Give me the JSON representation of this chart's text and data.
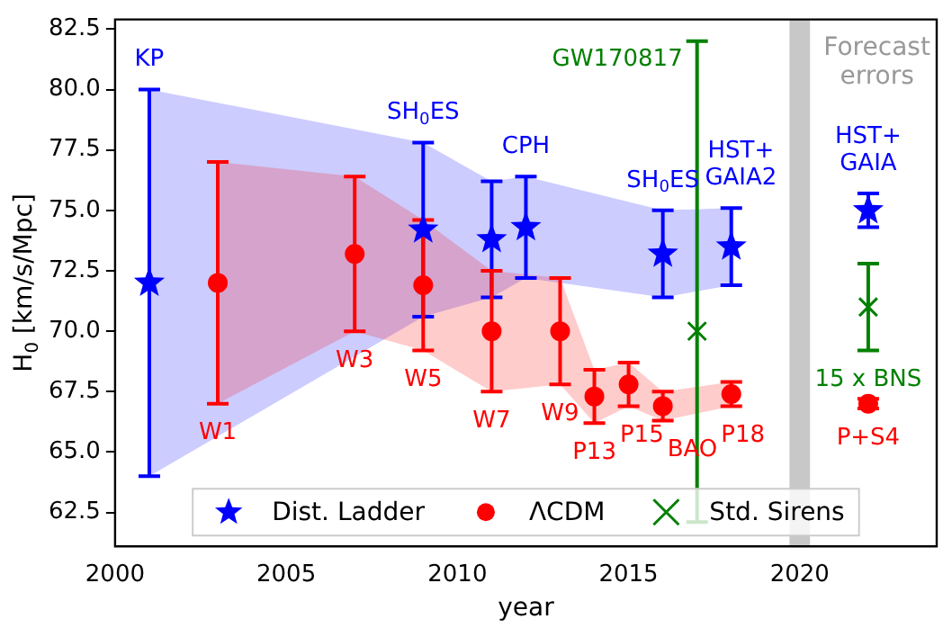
{
  "chart_data": {
    "type": "scatter",
    "xlabel": "year",
    "ylabel": "H$_{0}$ [km/s/Mpc]",
    "xlim": [
      2000,
      2024
    ],
    "xticks": [
      2000,
      2005,
      2010,
      2015,
      2020
    ],
    "ylim": [
      61.1,
      82.9
    ],
    "yticks": [
      62.5,
      {
        "value": 65,
        "label": "65.0"
      },
      67.5,
      {
        "value": 70,
        "label": "70.0"
      },
      72.5,
      {
        "value": 75,
        "label": "75.0"
      },
      77.5,
      {
        "value": 80,
        "label": "80.0"
      },
      82.5
    ],
    "grid": false,
    "legend": "bottom",
    "series": [
      {
        "name": "Dist. Ladder",
        "color": "#0000ff",
        "marker": "star",
        "x": [
          2001,
          2009,
          2011,
          2012,
          2016,
          2018,
          2022
        ],
        "values": [
          72,
          74.2,
          73.8,
          74.3,
          73.2,
          73.5,
          75.0
        ],
        "errors": [
          8,
          3.6,
          2.4,
          2.1,
          1.8,
          1.6,
          0.7
        ],
        "lower": [
          64,
          70.6,
          71.4,
          72.2,
          71.4,
          71.9,
          null
        ],
        "upper": [
          80,
          77.8,
          76.2,
          76.4,
          75.0,
          75.1,
          null
        ]
      },
      {
        "name": "ΛCDM",
        "color": "#ff0000",
        "marker": "circle",
        "x": [
          2003,
          2007,
          2009,
          2011,
          2013,
          2014,
          2015,
          2016,
          2018,
          2022
        ],
        "values": [
          72,
          73.2,
          71.9,
          70.0,
          70.0,
          67.3,
          67.8,
          66.9,
          67.4,
          67.0
        ],
        "errors": [
          5,
          3.2,
          2.7,
          2.5,
          2.2,
          1.1,
          0.9,
          0.6,
          0.5,
          0.2
        ],
        "lower": [
          67,
          70,
          69.2,
          67.5,
          67.8,
          66.2,
          66.9,
          66.3,
          66.9,
          null
        ],
        "upper": [
          77,
          76.4,
          74.6,
          72.5,
          72.2,
          68.4,
          68.7,
          67.5,
          67.9,
          null
        ]
      },
      {
        "name": "Std. Sirens",
        "color": "#008000",
        "marker": "cross",
        "x": [
          2017,
          2022
        ],
        "values": [
          70,
          71.0
        ],
        "errors": [
          [
            62.1,
            82.0
          ],
          1.8
        ]
      }
    ],
    "bands": [
      {
        "axis": "x",
        "from": 2019.7,
        "to": 2020.3,
        "label": "Forecast\nerrors",
        "color": "#c8c8c8"
      }
    ],
    "annotations": [
      {
        "text": "KP",
        "x": 2001,
        "y": 80
      },
      {
        "text": "SH$_{0}$ES",
        "x": 2009,
        "y": 77.8
      },
      {
        "text": "CPH",
        "x": 2012,
        "y": 76.4
      },
      {
        "text": "SH$_{0}$ES",
        "x": 2016,
        "y": 75.0
      },
      {
        "text": "HST+\nGAIA2",
        "x": 2018,
        "y": 75.1
      },
      {
        "text": "HST+\nGAIA",
        "x": 2022,
        "y": 75.7
      },
      {
        "text": "GW170817",
        "x": 2017,
        "y": 82.0
      },
      {
        "text": "15 x BNS",
        "x": 2022,
        "y": 69.2
      },
      {
        "text": "P+S4",
        "x": 2022,
        "y": 66.8
      },
      {
        "text": "W1",
        "x": 2003,
        "y": 67
      },
      {
        "text": "W3",
        "x": 2007,
        "y": 70
      },
      {
        "text": "W5",
        "x": 2009,
        "y": 69.2
      },
      {
        "text": "W7",
        "x": 2011,
        "y": 67.5
      },
      {
        "text": "W9",
        "x": 2013,
        "y": 67.8
      },
      {
        "text": "P13",
        "x": 2014,
        "y": 66.2
      },
      {
        "text": "P15",
        "x": 2015,
        "y": 66.9
      },
      {
        "text": "BAO",
        "x": 2016,
        "y": 66.3
      },
      {
        "text": "P18",
        "x": 2018,
        "y": 66.9
      }
    ]
  }
}
